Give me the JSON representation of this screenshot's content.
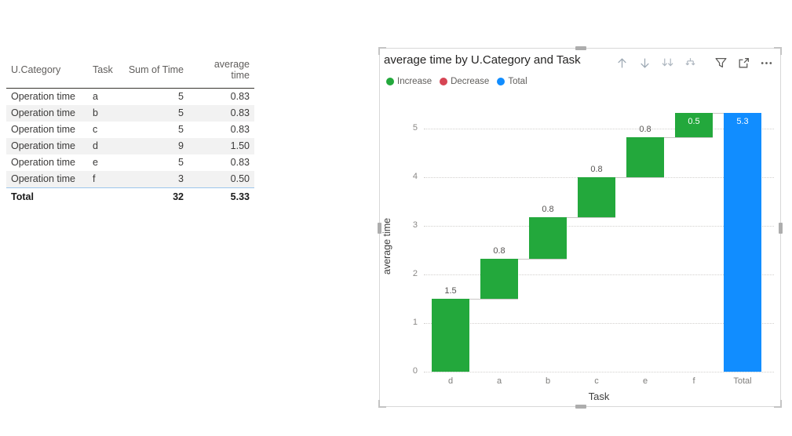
{
  "table_visual": {
    "columns": [
      {
        "label": "U.Category",
        "align": "left"
      },
      {
        "label": "Task",
        "align": "left"
      },
      {
        "label": "Sum of Time",
        "align": "right"
      },
      {
        "label": "average time",
        "align": "right"
      }
    ],
    "rows": [
      [
        "Operation time",
        "a",
        "5",
        "0.83"
      ],
      [
        "Operation time",
        "b",
        "5",
        "0.83"
      ],
      [
        "Operation time",
        "c",
        "5",
        "0.83"
      ],
      [
        "Operation time",
        "d",
        "9",
        "1.50"
      ],
      [
        "Operation time",
        "e",
        "5",
        "0.83"
      ],
      [
        "Operation time",
        "f",
        "3",
        "0.50"
      ]
    ],
    "total_row": [
      "Total",
      "",
      "32",
      "5.33"
    ]
  },
  "chart_visual": {
    "title": "average time by U.Category and Task",
    "toolbar_icons": [
      "drill-up-icon",
      "drill-down-icon",
      "show-next-level-icon",
      "expand-all-down-icon",
      "filter-icon",
      "focus-mode-icon",
      "more-options-icon"
    ],
    "legend": [
      {
        "label": "Increase",
        "color": "#23A83C"
      },
      {
        "label": "Decrease",
        "color": "#D64554"
      },
      {
        "label": "Total",
        "color": "#118DFF"
      }
    ]
  },
  "chart_data": {
    "type": "bar",
    "subtype": "waterfall",
    "title": "average time by U.Category and Task",
    "xlabel": "Task",
    "ylabel": "average time",
    "categories": [
      "d",
      "a",
      "b",
      "c",
      "e",
      "f",
      "Total"
    ],
    "series": [
      {
        "name": "average time",
        "values": [
          1.5,
          0.83,
          0.83,
          0.83,
          0.83,
          0.5,
          5.33
        ]
      }
    ],
    "bar_roles": [
      "increase",
      "increase",
      "increase",
      "increase",
      "increase",
      "increase",
      "total"
    ],
    "cumulative_start": [
      0,
      1.5,
      2.33,
      3.17,
      4.0,
      4.83,
      0
    ],
    "cumulative_end": [
      1.5,
      2.33,
      3.17,
      4.0,
      4.83,
      5.33,
      5.33
    ],
    "data_labels": [
      "1.5",
      "0.8",
      "0.8",
      "0.8",
      "0.8",
      "0.5",
      "5.3"
    ],
    "label_placement": [
      "outside",
      "outside",
      "outside",
      "outside",
      "outside",
      "inside",
      "inside"
    ],
    "yticks": [
      0,
      1,
      2,
      3,
      4,
      5
    ],
    "ylim": [
      0,
      5.5
    ],
    "grid": "horizontal-dotted",
    "legend_position": "top-left",
    "colors": {
      "increase": "#23A83C",
      "decrease": "#D64554",
      "total": "#118DFF"
    }
  }
}
